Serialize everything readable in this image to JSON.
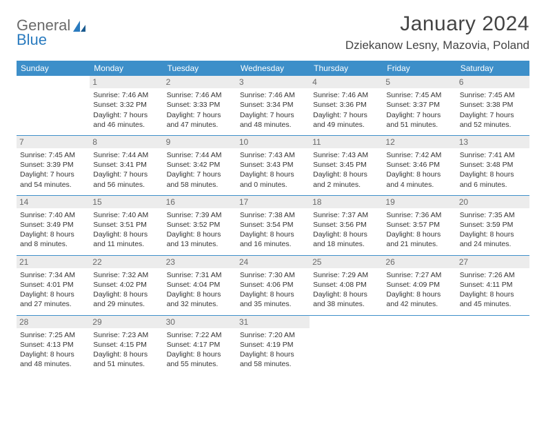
{
  "logo": {
    "general": "General",
    "blue": "Blue"
  },
  "title": "January 2024",
  "location": "Dziekanow Lesny, Mazovia, Poland",
  "colors": {
    "header_bg": "#3d8fc9",
    "header_text": "#ffffff",
    "daynum_bg": "#ececec",
    "border": "#3d8fc9"
  },
  "days_of_week": [
    "Sunday",
    "Monday",
    "Tuesday",
    "Wednesday",
    "Thursday",
    "Friday",
    "Saturday"
  ],
  "weeks": [
    [
      {
        "num": "",
        "lines": [
          "",
          "",
          "",
          ""
        ]
      },
      {
        "num": "1",
        "lines": [
          "Sunrise: 7:46 AM",
          "Sunset: 3:32 PM",
          "Daylight: 7 hours",
          "and 46 minutes."
        ]
      },
      {
        "num": "2",
        "lines": [
          "Sunrise: 7:46 AM",
          "Sunset: 3:33 PM",
          "Daylight: 7 hours",
          "and 47 minutes."
        ]
      },
      {
        "num": "3",
        "lines": [
          "Sunrise: 7:46 AM",
          "Sunset: 3:34 PM",
          "Daylight: 7 hours",
          "and 48 minutes."
        ]
      },
      {
        "num": "4",
        "lines": [
          "Sunrise: 7:46 AM",
          "Sunset: 3:36 PM",
          "Daylight: 7 hours",
          "and 49 minutes."
        ]
      },
      {
        "num": "5",
        "lines": [
          "Sunrise: 7:45 AM",
          "Sunset: 3:37 PM",
          "Daylight: 7 hours",
          "and 51 minutes."
        ]
      },
      {
        "num": "6",
        "lines": [
          "Sunrise: 7:45 AM",
          "Sunset: 3:38 PM",
          "Daylight: 7 hours",
          "and 52 minutes."
        ]
      }
    ],
    [
      {
        "num": "7",
        "lines": [
          "Sunrise: 7:45 AM",
          "Sunset: 3:39 PM",
          "Daylight: 7 hours",
          "and 54 minutes."
        ]
      },
      {
        "num": "8",
        "lines": [
          "Sunrise: 7:44 AM",
          "Sunset: 3:41 PM",
          "Daylight: 7 hours",
          "and 56 minutes."
        ]
      },
      {
        "num": "9",
        "lines": [
          "Sunrise: 7:44 AM",
          "Sunset: 3:42 PM",
          "Daylight: 7 hours",
          "and 58 minutes."
        ]
      },
      {
        "num": "10",
        "lines": [
          "Sunrise: 7:43 AM",
          "Sunset: 3:43 PM",
          "Daylight: 8 hours",
          "and 0 minutes."
        ]
      },
      {
        "num": "11",
        "lines": [
          "Sunrise: 7:43 AM",
          "Sunset: 3:45 PM",
          "Daylight: 8 hours",
          "and 2 minutes."
        ]
      },
      {
        "num": "12",
        "lines": [
          "Sunrise: 7:42 AM",
          "Sunset: 3:46 PM",
          "Daylight: 8 hours",
          "and 4 minutes."
        ]
      },
      {
        "num": "13",
        "lines": [
          "Sunrise: 7:41 AM",
          "Sunset: 3:48 PM",
          "Daylight: 8 hours",
          "and 6 minutes."
        ]
      }
    ],
    [
      {
        "num": "14",
        "lines": [
          "Sunrise: 7:40 AM",
          "Sunset: 3:49 PM",
          "Daylight: 8 hours",
          "and 8 minutes."
        ]
      },
      {
        "num": "15",
        "lines": [
          "Sunrise: 7:40 AM",
          "Sunset: 3:51 PM",
          "Daylight: 8 hours",
          "and 11 minutes."
        ]
      },
      {
        "num": "16",
        "lines": [
          "Sunrise: 7:39 AM",
          "Sunset: 3:52 PM",
          "Daylight: 8 hours",
          "and 13 minutes."
        ]
      },
      {
        "num": "17",
        "lines": [
          "Sunrise: 7:38 AM",
          "Sunset: 3:54 PM",
          "Daylight: 8 hours",
          "and 16 minutes."
        ]
      },
      {
        "num": "18",
        "lines": [
          "Sunrise: 7:37 AM",
          "Sunset: 3:56 PM",
          "Daylight: 8 hours",
          "and 18 minutes."
        ]
      },
      {
        "num": "19",
        "lines": [
          "Sunrise: 7:36 AM",
          "Sunset: 3:57 PM",
          "Daylight: 8 hours",
          "and 21 minutes."
        ]
      },
      {
        "num": "20",
        "lines": [
          "Sunrise: 7:35 AM",
          "Sunset: 3:59 PM",
          "Daylight: 8 hours",
          "and 24 minutes."
        ]
      }
    ],
    [
      {
        "num": "21",
        "lines": [
          "Sunrise: 7:34 AM",
          "Sunset: 4:01 PM",
          "Daylight: 8 hours",
          "and 27 minutes."
        ]
      },
      {
        "num": "22",
        "lines": [
          "Sunrise: 7:32 AM",
          "Sunset: 4:02 PM",
          "Daylight: 8 hours",
          "and 29 minutes."
        ]
      },
      {
        "num": "23",
        "lines": [
          "Sunrise: 7:31 AM",
          "Sunset: 4:04 PM",
          "Daylight: 8 hours",
          "and 32 minutes."
        ]
      },
      {
        "num": "24",
        "lines": [
          "Sunrise: 7:30 AM",
          "Sunset: 4:06 PM",
          "Daylight: 8 hours",
          "and 35 minutes."
        ]
      },
      {
        "num": "25",
        "lines": [
          "Sunrise: 7:29 AM",
          "Sunset: 4:08 PM",
          "Daylight: 8 hours",
          "and 38 minutes."
        ]
      },
      {
        "num": "26",
        "lines": [
          "Sunrise: 7:27 AM",
          "Sunset: 4:09 PM",
          "Daylight: 8 hours",
          "and 42 minutes."
        ]
      },
      {
        "num": "27",
        "lines": [
          "Sunrise: 7:26 AM",
          "Sunset: 4:11 PM",
          "Daylight: 8 hours",
          "and 45 minutes."
        ]
      }
    ],
    [
      {
        "num": "28",
        "lines": [
          "Sunrise: 7:25 AM",
          "Sunset: 4:13 PM",
          "Daylight: 8 hours",
          "and 48 minutes."
        ]
      },
      {
        "num": "29",
        "lines": [
          "Sunrise: 7:23 AM",
          "Sunset: 4:15 PM",
          "Daylight: 8 hours",
          "and 51 minutes."
        ]
      },
      {
        "num": "30",
        "lines": [
          "Sunrise: 7:22 AM",
          "Sunset: 4:17 PM",
          "Daylight: 8 hours",
          "and 55 minutes."
        ]
      },
      {
        "num": "31",
        "lines": [
          "Sunrise: 7:20 AM",
          "Sunset: 4:19 PM",
          "Daylight: 8 hours",
          "and 58 minutes."
        ]
      },
      {
        "num": "",
        "lines": [
          "",
          "",
          "",
          ""
        ]
      },
      {
        "num": "",
        "lines": [
          "",
          "",
          "",
          ""
        ]
      },
      {
        "num": "",
        "lines": [
          "",
          "",
          "",
          ""
        ]
      }
    ]
  ]
}
